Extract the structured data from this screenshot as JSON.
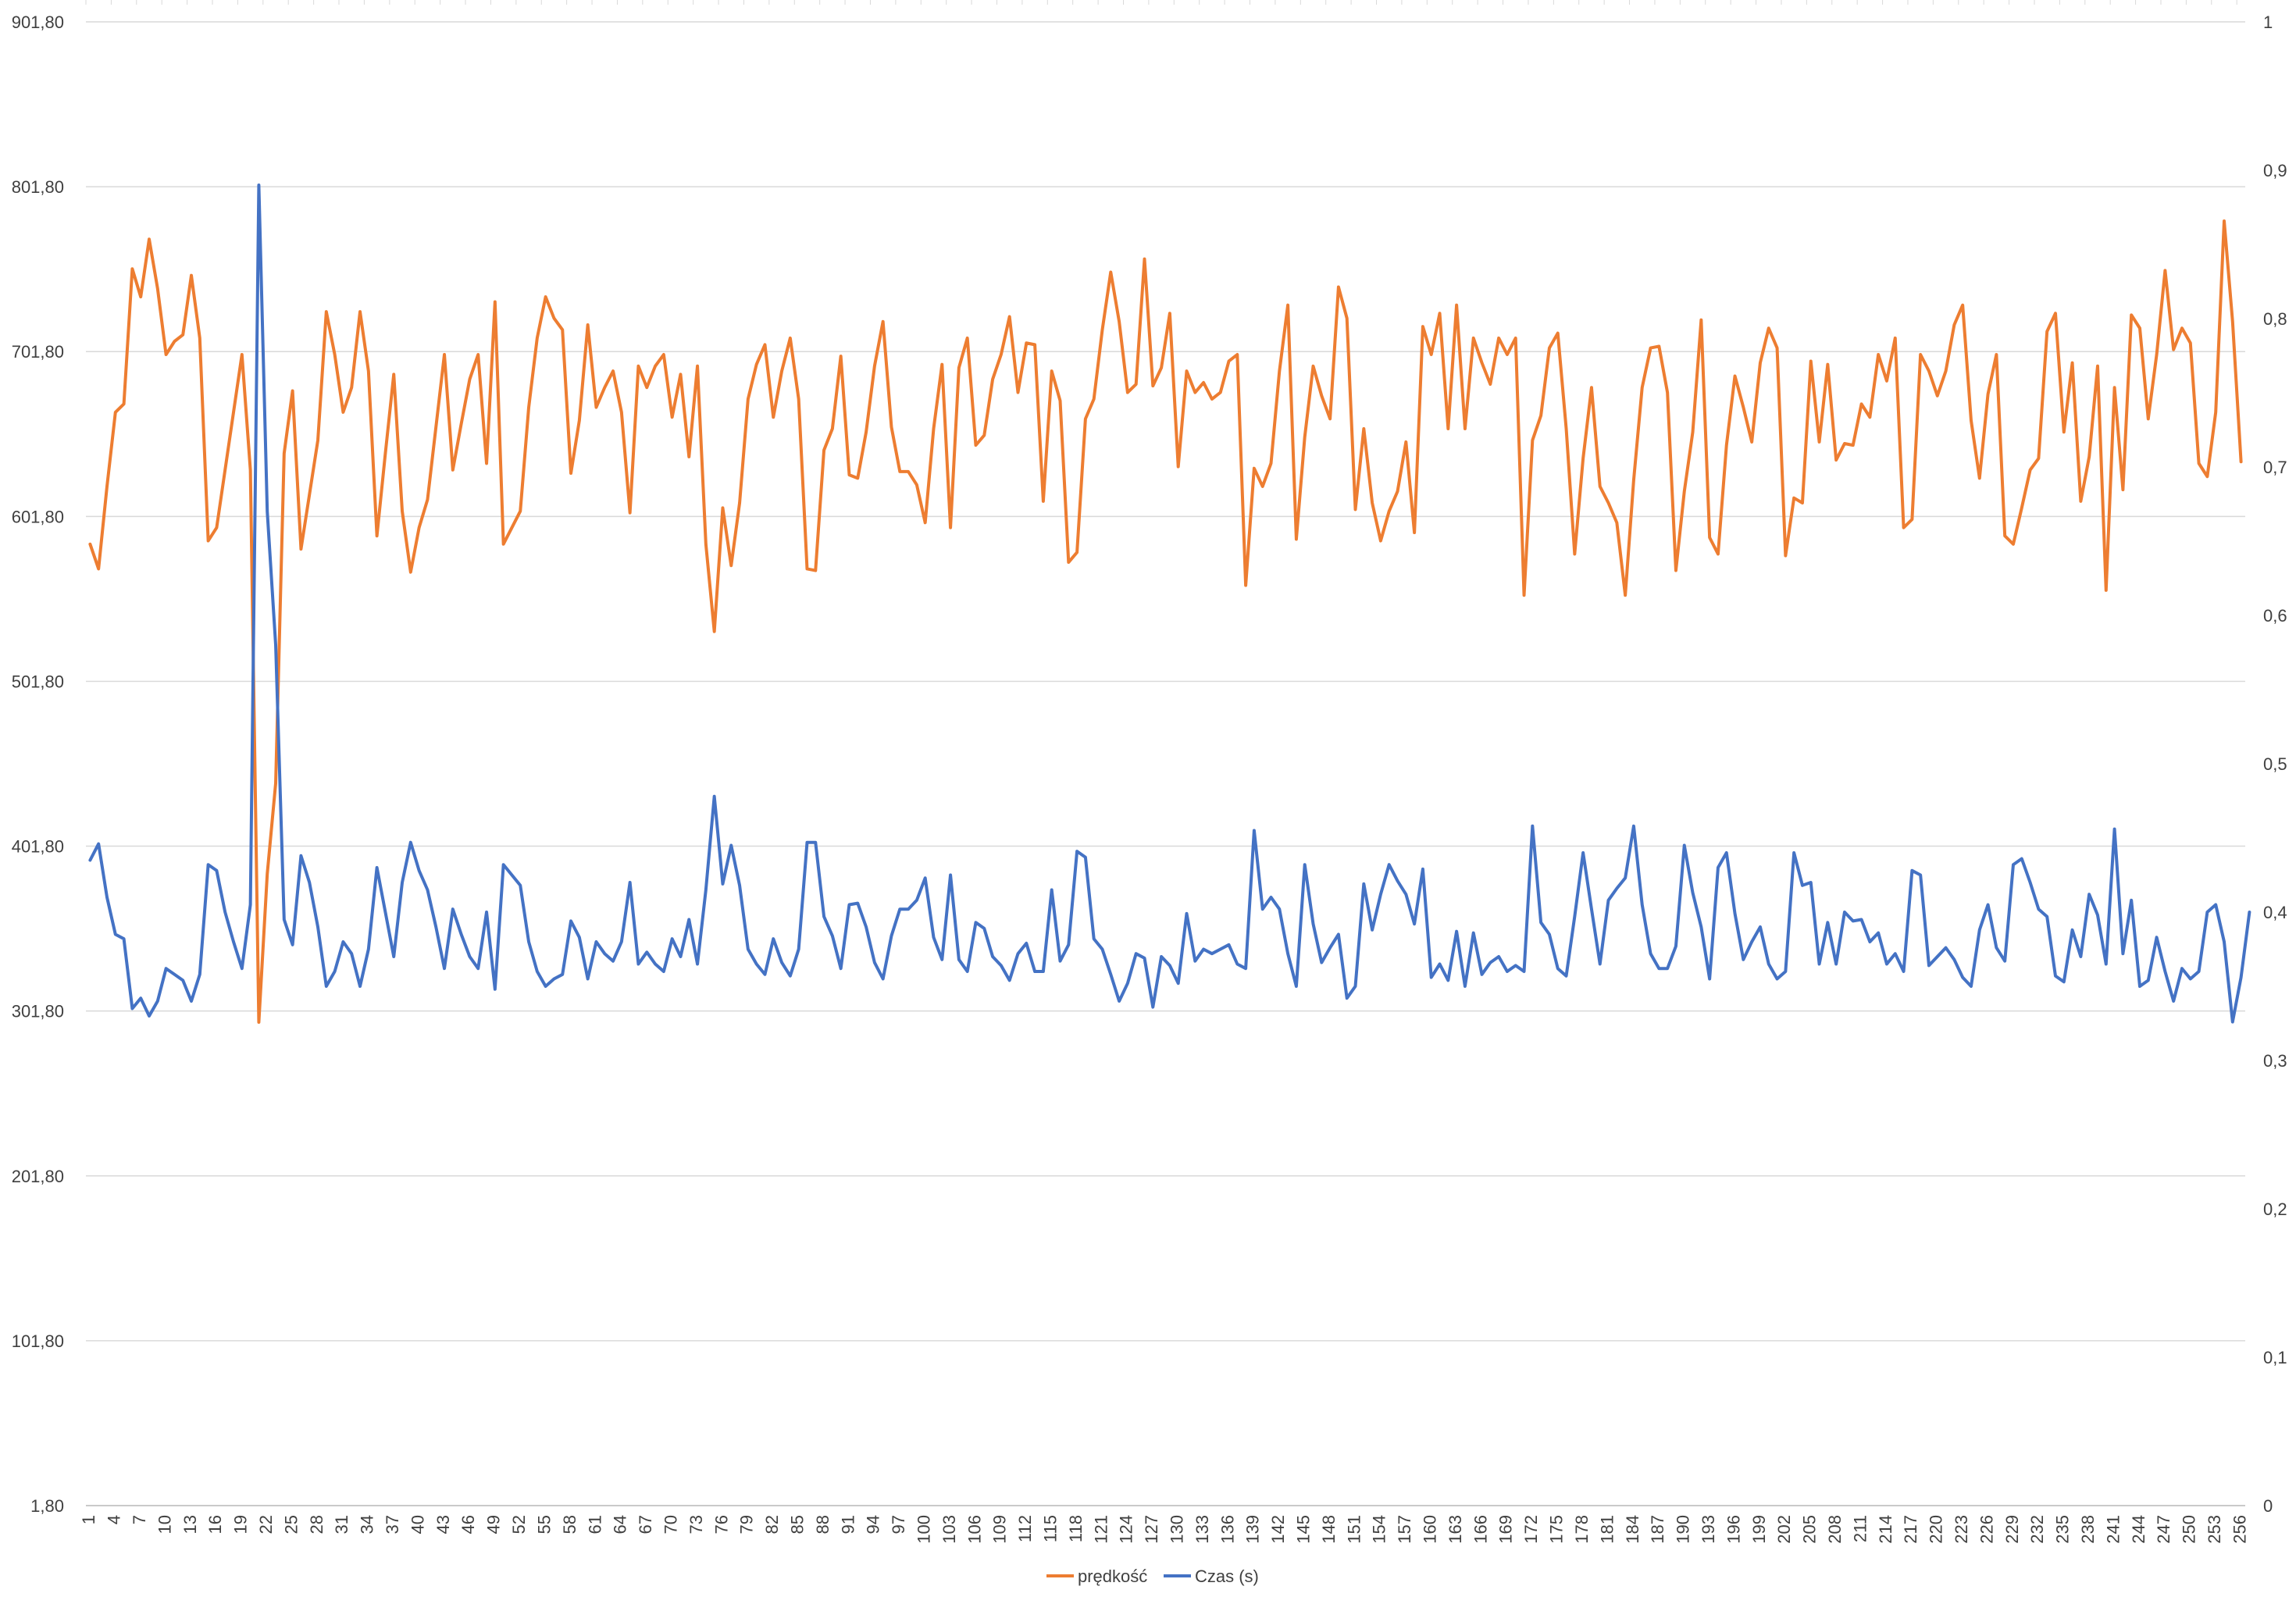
{
  "chart_data": {
    "type": "line",
    "title": "",
    "xlabel": "",
    "ylabel": "",
    "x_axis": {
      "categories_start": 1,
      "categories_end": 256,
      "label_step": 3,
      "tick_labels": [
        "1",
        "4",
        "7",
        "10",
        "13",
        "16",
        "19",
        "22",
        "25",
        "28",
        "31",
        "34",
        "37",
        "40",
        "43",
        "46",
        "49",
        "52",
        "55",
        "58",
        "61",
        "64",
        "67",
        "70",
        "73",
        "76",
        "79",
        "82",
        "85",
        "88",
        "91",
        "94",
        "97",
        "100",
        "103",
        "106",
        "109",
        "112",
        "115",
        "118",
        "121",
        "124",
        "127",
        "130",
        "133",
        "136",
        "139",
        "142",
        "145",
        "148",
        "151",
        "154",
        "157",
        "160",
        "163",
        "166",
        "169",
        "172",
        "175",
        "178",
        "181",
        "184",
        "187",
        "190",
        "193",
        "196",
        "199",
        "202",
        "205",
        "208",
        "211",
        "214",
        "217",
        "220",
        "223",
        "226",
        "229",
        "232",
        "235",
        "238",
        "241",
        "244",
        "247",
        "250",
        "253",
        "256"
      ]
    },
    "y_left": {
      "min": 1.8,
      "max": 901.8,
      "step": 100,
      "tick_labels": [
        "1,80",
        "101,80",
        "201,80",
        "301,80",
        "401,80",
        "501,80",
        "601,80",
        "701,80",
        "801,80",
        "901,80"
      ]
    },
    "y_right": {
      "min": 0,
      "max": 1,
      "step": 0.1,
      "tick_labels": [
        "0",
        "0,1",
        "0,2",
        "0,3",
        "0,4",
        "0,5",
        "0,6",
        "0,7",
        "0,8",
        "0,9",
        "1"
      ]
    },
    "gridlines": true,
    "legend": {
      "position": "bottom"
    },
    "series": [
      {
        "name": "prędkość",
        "axis": "left",
        "color": "#ED7D31",
        "values": [
          585,
          570,
          620,
          665,
          670,
          752,
          735,
          770,
          740,
          700,
          708,
          712,
          748,
          710,
          587,
          595,
          630,
          665,
          700,
          630,
          295,
          385,
          440,
          640,
          678,
          582,
          615,
          648,
          726,
          700,
          665,
          680,
          726,
          690,
          590,
          640,
          688,
          605,
          568,
          595,
          612,
          656,
          700,
          630,
          658,
          685,
          700,
          634,
          732,
          585,
          595,
          605,
          668,
          710,
          735,
          722,
          715,
          628,
          660,
          718,
          668,
          680,
          690,
          665,
          604,
          693,
          680,
          693,
          700,
          662,
          688,
          638,
          693,
          585,
          532,
          607,
          572,
          610,
          673,
          694,
          706,
          662,
          690,
          710,
          673,
          570,
          569,
          642,
          655,
          699,
          627,
          625,
          653,
          693,
          720,
          656,
          629,
          629,
          621,
          598,
          655,
          694,
          595,
          692,
          710,
          645,
          651,
          685,
          700,
          723,
          677,
          707,
          706,
          611,
          690,
          672,
          574,
          580,
          661,
          673,
          715,
          750,
          720,
          677,
          682,
          758,
          681,
          692,
          725,
          632,
          690,
          677,
          683,
          673,
          677,
          696,
          700,
          560,
          631,
          620,
          634,
          690,
          730,
          588,
          650,
          693,
          675,
          661,
          741,
          722,
          606,
          655,
          610,
          587,
          605,
          617,
          647,
          592,
          717,
          700,
          725,
          655,
          730,
          655,
          710,
          695,
          682,
          710,
          700,
          710,
          554,
          648,
          663,
          704,
          713,
          655,
          579,
          637,
          680,
          620,
          610,
          598,
          554,
          624,
          680,
          704,
          705,
          677,
          569,
          617,
          653,
          721,
          589,
          579,
          645,
          687,
          668,
          647,
          695,
          716,
          704,
          578,
          613,
          610,
          696,
          647,
          694,
          636,
          646,
          645,
          670,
          662,
          700,
          684,
          710,
          595,
          600,
          700,
          690,
          675,
          690,
          718,
          730,
          660,
          625,
          676,
          700,
          590,
          585,
          607,
          630,
          637,
          714,
          725,
          653,
          695,
          611,
          638,
          693,
          557,
          680,
          618,
          724,
          716,
          661,
          700,
          751,
          703,
          716,
          707,
          634,
          626,
          665,
          781,
          720,
          635
        ]
      },
      {
        "name": "Czas (s)",
        "axis": "right",
        "color": "#4472C4",
        "values": [
          0.435,
          0.446,
          0.41,
          0.385,
          0.382,
          0.335,
          0.342,
          0.33,
          0.34,
          0.362,
          0.358,
          0.354,
          0.34,
          0.358,
          0.432,
          0.428,
          0.4,
          0.38,
          0.362,
          0.405,
          0.89,
          0.67,
          0.58,
          0.395,
          0.378,
          0.438,
          0.42,
          0.39,
          0.35,
          0.36,
          0.38,
          0.372,
          0.35,
          0.375,
          0.43,
          0.4,
          0.37,
          0.42,
          0.447,
          0.428,
          0.415,
          0.39,
          0.362,
          0.402,
          0.385,
          0.37,
          0.362,
          0.4,
          0.348,
          0.432,
          0.425,
          0.418,
          0.38,
          0.36,
          0.35,
          0.355,
          0.358,
          0.394,
          0.383,
          0.355,
          0.38,
          0.372,
          0.367,
          0.38,
          0.42,
          0.365,
          0.373,
          0.365,
          0.36,
          0.382,
          0.37,
          0.395,
          0.365,
          0.415,
          0.478,
          0.419,
          0.445,
          0.418,
          0.375,
          0.365,
          0.358,
          0.382,
          0.366,
          0.357,
          0.375,
          0.447,
          0.447,
          0.397,
          0.384,
          0.362,
          0.405,
          0.406,
          0.39,
          0.366,
          0.355,
          0.384,
          0.402,
          0.402,
          0.408,
          0.423,
          0.383,
          0.368,
          0.425,
          0.368,
          0.36,
          0.393,
          0.389,
          0.37,
          0.364,
          0.354,
          0.372,
          0.379,
          0.36,
          0.36,
          0.415,
          0.367,
          0.378,
          0.441,
          0.437,
          0.382,
          0.375,
          0.358,
          0.34,
          0.352,
          0.372,
          0.369,
          0.336,
          0.37,
          0.364,
          0.352,
          0.399,
          0.367,
          0.375,
          0.372,
          0.375,
          0.378,
          0.365,
          0.362,
          0.455,
          0.402,
          0.41,
          0.402,
          0.372,
          0.35,
          0.432,
          0.392,
          0.366,
          0.376,
          0.385,
          0.342,
          0.35,
          0.419,
          0.388,
          0.412,
          0.432,
          0.421,
          0.412,
          0.392,
          0.429,
          0.356,
          0.365,
          0.354,
          0.387,
          0.35,
          0.386,
          0.358,
          0.366,
          0.37,
          0.36,
          0.364,
          0.36,
          0.458,
          0.393,
          0.385,
          0.362,
          0.357,
          0.397,
          0.44,
          0.402,
          0.365,
          0.408,
          0.416,
          0.423,
          0.458,
          0.405,
          0.372,
          0.362,
          0.362,
          0.377,
          0.445,
          0.413,
          0.39,
          0.355,
          0.43,
          0.44,
          0.399,
          0.368,
          0.38,
          0.39,
          0.365,
          0.355,
          0.36,
          0.44,
          0.418,
          0.42,
          0.365,
          0.393,
          0.365,
          0.4,
          0.394,
          0.395,
          0.38,
          0.386,
          0.365,
          0.372,
          0.36,
          0.428,
          0.425,
          0.364,
          0.37,
          0.376,
          0.368,
          0.356,
          0.35,
          0.388,
          0.405,
          0.376,
          0.367,
          0.432,
          0.436,
          0.42,
          0.402,
          0.397,
          0.357,
          0.353,
          0.388,
          0.37,
          0.412,
          0.398,
          0.365,
          0.456,
          0.372,
          0.408,
          0.35,
          0.354,
          0.383,
          0.36,
          0.34,
          0.362,
          0.355,
          0.36,
          0.4,
          0.405,
          0.38,
          0.326,
          0.356,
          0.4
        ]
      }
    ]
  }
}
